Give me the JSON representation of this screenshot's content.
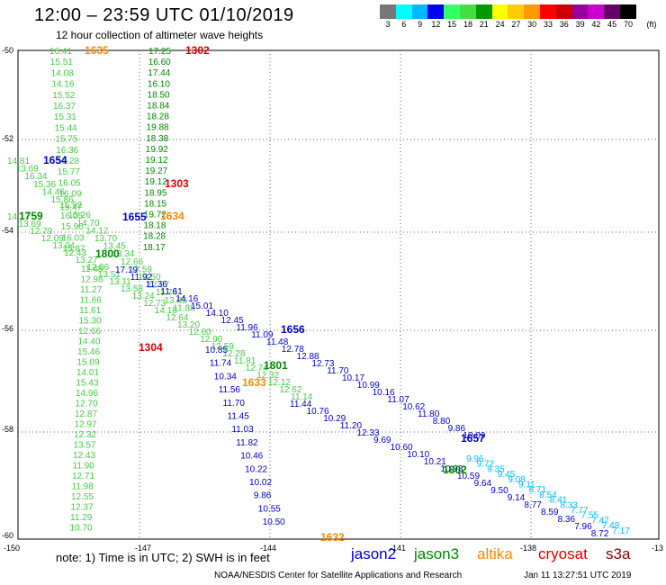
{
  "title": "12:00 – 23:59 UTC 01/10/2019",
  "subtitle": "12 hour collection of altimeter wave heights",
  "scale": {
    "unit": "(ft)",
    "labels": [
      "3",
      "6",
      "9",
      "12",
      "15",
      "18",
      "21",
      "24",
      "27",
      "30",
      "33",
      "36",
      "39",
      "42",
      "45",
      "70"
    ],
    "colors": [
      "#777777",
      "#00ffff",
      "#00b8ff",
      "#0000ee",
      "#33ff66",
      "#44dd44",
      "#009900",
      "#ffff00",
      "#ffcc00",
      "#ff9900",
      "#ff0000",
      "#cc0000",
      "#990099",
      "#cc00cc",
      "#660066",
      "#000000"
    ]
  },
  "axes": {
    "y_labels": [
      "-50",
      "-52",
      "-54",
      "-56",
      "-58",
      "-60"
    ],
    "x_labels": [
      "-150",
      "-147",
      "-144",
      "-141",
      "-138",
      "-13"
    ]
  },
  "note": "note:  1) Time is in UTC;  2) SWH is in feet",
  "legend": [
    {
      "name": "jason2",
      "color": "#0000cc"
    },
    {
      "name": "jason3",
      "color": "#008800"
    },
    {
      "name": "altika",
      "color": "#ff8800"
    },
    {
      "name": "cryosat",
      "color": "#dd0000"
    },
    {
      "name": "s3a",
      "color": "#880000"
    }
  ],
  "footer": {
    "org": "NOAA/NESDIS Center for Satellite Applications and Research",
    "timestamp": "Jan 11 13:27:51 UTC 2019"
  },
  "map_data": {
    "times": [
      {
        "label": "1635",
        "color": "#ff8800"
      },
      {
        "label": "1302",
        "color": "#dd0000"
      },
      {
        "label": "1654",
        "color": "#0000cc"
      },
      {
        "label": "1303",
        "color": "#dd0000"
      },
      {
        "label": "1759",
        "color": "#008800"
      },
      {
        "label": "1655",
        "color": "#0000cc"
      },
      {
        "label": "1634",
        "color": "#ff8800"
      },
      {
        "label": "1800",
        "color": "#008800"
      },
      {
        "label": "1656",
        "color": "#0000cc"
      },
      {
        "label": "1304",
        "color": "#dd0000"
      },
      {
        "label": "1801",
        "color": "#008800"
      },
      {
        "label": "1633",
        "color": "#ff8800"
      },
      {
        "label": "1657",
        "color": "#0000cc"
      },
      {
        "label": "1802",
        "color": "#008800"
      },
      {
        "label": "1632",
        "color": "#ff8800"
      }
    ],
    "tracks": [
      {
        "name": "track-a",
        "color": "#44cc44",
        "values": [
          "16.41",
          "15.51",
          "14.08",
          "14.16",
          "15.52",
          "16.37",
          "15.31",
          "15.44",
          "15.75",
          "16.36",
          "16.28",
          "15.77",
          "16.05",
          "16.09",
          "15.92",
          "16.05",
          "15.90",
          "16.03",
          "15.87"
        ]
      },
      {
        "name": "track-b",
        "color": "#008800",
        "values": [
          "17.25",
          "16.60",
          "17.44",
          "16.10",
          "18.50",
          "18.84",
          "18.28",
          "19.88",
          "18.38",
          "19.92",
          "19.12",
          "19.27",
          "19.12",
          "18.95",
          "18.15",
          "19.72",
          "18.18",
          "18.28",
          "18.17"
        ]
      },
      {
        "name": "track-c",
        "color": "#44cc44",
        "values": [
          "14.81",
          "13.69",
          "16.34",
          "15.36",
          "14.46",
          "15.86",
          "15.47",
          "15.26",
          "14.70",
          "14.12",
          "13.70",
          "13.45",
          "13.34",
          "12.66",
          "12.59",
          "13.50",
          "12.37",
          "11.74",
          "13.83",
          "11.88"
        ]
      },
      {
        "name": "track-d",
        "color": "#44cc44",
        "values": [
          "14.17",
          "13.69",
          "12.79",
          "12.09",
          "13.04",
          "12.43",
          "13.27",
          "12.06",
          "13.51",
          "13.11",
          "13.58",
          "13.24",
          "12.73",
          "14.18",
          "12.64",
          "13.20",
          "12.60",
          "12.90",
          "12.59",
          "12.28",
          "11.81",
          "12.74",
          "12.32",
          "12.12",
          "12.62",
          "11.14"
        ]
      },
      {
        "name": "track-e",
        "color": "#44cc44",
        "values": [
          "11.48",
          "12.98",
          "11.27",
          "11.66",
          "11.61",
          "15.30",
          "12.66",
          "14.40",
          "15.46",
          "15.09",
          "14.01",
          "15.43",
          "14.96",
          "12.70",
          "12.87",
          "12.97",
          "12.32",
          "13.57",
          "12.43",
          "11.90",
          "12.71",
          "11.98",
          "12.55",
          "12.37",
          "11.29",
          "10.70"
        ]
      },
      {
        "name": "track-f",
        "color": "#0000cc",
        "values": [
          "17.19",
          "11.92",
          "11.36",
          "11.61",
          "14.16",
          "15.01",
          "14.10",
          "12.45",
          "11.96",
          "11.09",
          "11.48",
          "12.78",
          "12.88",
          "12.73",
          "11.70",
          "10.17",
          "10.99",
          "10.16",
          "11.07",
          "10.62",
          "11.80",
          "8.80",
          "9.86",
          "10.09"
        ]
      },
      {
        "name": "track-g",
        "color": "#0000cc",
        "values": [
          "10.85",
          "11.74",
          "10.34",
          "11.56",
          "11.70",
          "11.45",
          "11.03",
          "11.82",
          "10.46",
          "10.22",
          "10.02",
          "9.86",
          "10.55",
          "10.50"
        ]
      },
      {
        "name": "track-h",
        "color": "#0000cc",
        "values": [
          "11.44",
          "10.76",
          "10.29",
          "11.20",
          "12.33",
          "9.69",
          "10.60",
          "10.10",
          "10.21",
          "10.98",
          "10.59",
          "9.64",
          "9.50",
          "9.14",
          "8.77",
          "8.59",
          "8.36",
          "7.96",
          "8.72"
        ]
      },
      {
        "name": "track-i",
        "color": "#00bbff",
        "values": [
          "9.96",
          "9.72",
          "9.35",
          "9.45",
          "9.08",
          "9.11",
          "8.71",
          "8.54",
          "8.41",
          "8.33",
          "7.77",
          "7.55",
          "7.47",
          "7.48",
          "7.17"
        ]
      }
    ]
  }
}
